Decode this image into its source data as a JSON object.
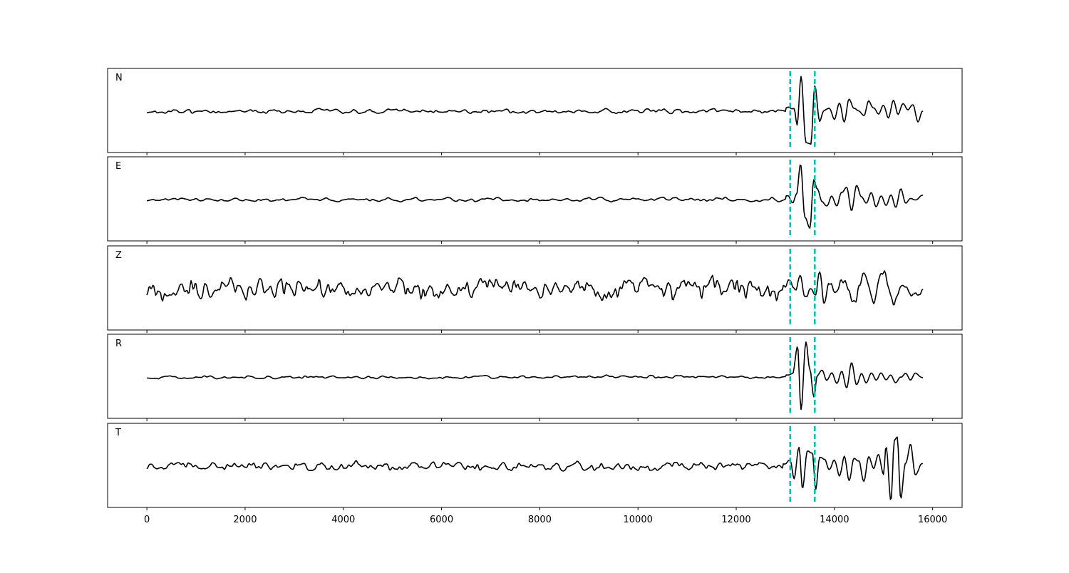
{
  "chart_data": {
    "type": "line",
    "x_range": [
      0,
      15800
    ],
    "xlim": [
      -800,
      16600
    ],
    "x_ticks": [
      0,
      2000,
      4000,
      6000,
      8000,
      10000,
      12000,
      14000,
      16000
    ],
    "x_tick_labels": [
      "0",
      "2000",
      "4000",
      "6000",
      "8000",
      "10000",
      "12000",
      "14000",
      "16000"
    ],
    "marker_lines": [
      13100,
      13600
    ],
    "marker_color": "#00bfbf",
    "line_color": "#000000",
    "y_axis": "hidden",
    "grid": false,
    "panels": [
      {
        "label": "N",
        "noise": 0.07,
        "seed": 11,
        "period": 120,
        "wavelet": {
          "x": [
            13060,
            13180,
            13240,
            13320,
            13420,
            13520,
            13600,
            13700,
            13780,
            13900,
            14000,
            14100,
            14200,
            14300,
            14400,
            14500,
            14600,
            14700,
            14800,
            14900,
            15000,
            15100,
            15200,
            15300,
            15400,
            15500,
            15600,
            15700,
            15800
          ],
          "y": [
            0.1,
            0.05,
            -0.4,
            0.95,
            -0.85,
            -0.9,
            0.7,
            -0.3,
            0.0,
            0.05,
            -0.2,
            0.25,
            -0.3,
            0.35,
            0.1,
            0.05,
            -0.1,
            0.3,
            0.1,
            -0.1,
            0.15,
            -0.2,
            0.3,
            -0.1,
            0.2,
            0.05,
            0.15,
            -0.3,
            0.0
          ]
        }
      },
      {
        "label": "E",
        "noise": 0.06,
        "seed": 23,
        "period": 140,
        "wavelet": {
          "x": [
            13050,
            13150,
            13230,
            13310,
            13400,
            13500,
            13580,
            13650,
            13750,
            13850,
            13950,
            14050,
            14150,
            14250,
            14350,
            14450,
            14550,
            14650,
            14750,
            14850,
            14950,
            15050,
            15150,
            15250,
            15350,
            15450,
            15550,
            15650,
            15800
          ],
          "y": [
            0.1,
            -0.1,
            0.15,
            0.95,
            -0.5,
            -0.8,
            0.55,
            0.3,
            -0.05,
            -0.2,
            0.1,
            -0.15,
            0.2,
            0.35,
            -0.3,
            0.4,
            0.05,
            -0.1,
            0.2,
            -0.2,
            0.1,
            -0.15,
            0.15,
            -0.2,
            0.3,
            -0.1,
            0.05,
            0.0,
            0.1
          ]
        }
      },
      {
        "label": "Z",
        "noise": 0.32,
        "seed": 37,
        "period": 100,
        "wavelet": {
          "x": [
            13000,
            13100,
            13200,
            13300,
            13400,
            13500,
            13600,
            13700,
            13800,
            13900,
            14000,
            14200,
            14400,
            14600,
            14800,
            15000,
            15200,
            15400,
            15600,
            15800
          ],
          "y": [
            0.1,
            0.2,
            -0.1,
            0.2,
            -0.3,
            0.0,
            -0.2,
            0.5,
            -0.3,
            0.2,
            -0.2,
            0.3,
            -0.3,
            0.3,
            -0.2,
            0.4,
            -0.4,
            0.2,
            -0.2,
            0.0
          ]
        }
      },
      {
        "label": "R",
        "noise": 0.05,
        "seed": 53,
        "period": 130,
        "wavelet": {
          "x": [
            13050,
            13150,
            13250,
            13320,
            13420,
            13500,
            13580,
            13650,
            13750,
            13850,
            13950,
            14050,
            14150,
            14250,
            14350,
            14450,
            14550,
            14650,
            14750,
            14850,
            14950,
            15050,
            15150,
            15250,
            15350,
            15450,
            15550,
            15650,
            15800
          ],
          "y": [
            0.05,
            0.1,
            0.85,
            -0.9,
            0.95,
            0.2,
            -0.55,
            0.05,
            0.2,
            -0.1,
            0.1,
            -0.2,
            0.15,
            -0.3,
            0.4,
            -0.2,
            0.1,
            -0.15,
            0.1,
            -0.1,
            0.1,
            -0.1,
            0.05,
            -0.15,
            0.0,
            0.1,
            -0.1,
            0.1,
            0.0
          ]
        }
      },
      {
        "label": "T",
        "noise": 0.14,
        "seed": 71,
        "period": 110,
        "wavelet": {
          "x": [
            13000,
            13100,
            13180,
            13280,
            13350,
            13450,
            13550,
            13620,
            13700,
            13800,
            13900,
            14000,
            14100,
            14200,
            14300,
            14400,
            14500,
            14600,
            14700,
            14800,
            14900,
            15000,
            15050,
            15150,
            15220,
            15280,
            15350,
            15450,
            15550,
            15650,
            15800
          ],
          "y": [
            0.1,
            0.1,
            -0.4,
            0.55,
            -0.6,
            0.4,
            0.35,
            -0.55,
            0.3,
            0.2,
            -0.1,
            0.2,
            -0.2,
            0.3,
            -0.4,
            0.2,
            0.1,
            -0.5,
            0.2,
            -0.1,
            0.3,
            -0.2,
            0.6,
            -0.9,
            0.75,
            0.8,
            -0.95,
            0.1,
            0.6,
            -0.3,
            0.1
          ]
        }
      }
    ]
  }
}
